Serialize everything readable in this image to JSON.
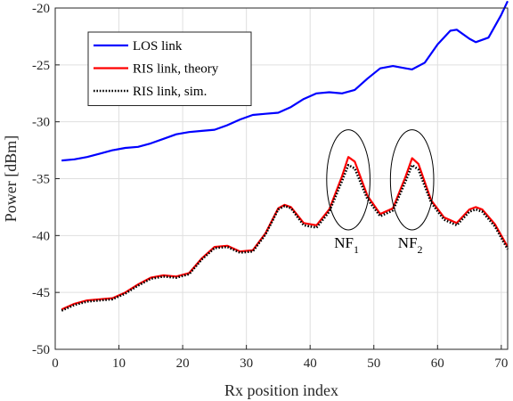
{
  "chart_data": {
    "type": "line",
    "xlabel": "Rx position index",
    "ylabel": "Power [dBm]",
    "xlim": [
      0,
      71
    ],
    "ylim": [
      -50,
      -20
    ],
    "xticks": [
      0,
      10,
      20,
      30,
      40,
      50,
      60,
      70
    ],
    "yticks": [
      -50,
      -45,
      -40,
      -35,
      -30,
      -25,
      -20
    ],
    "grid": true,
    "legend_position": "top-left",
    "series": [
      {
        "name": "LOS link",
        "color": "#0000ff",
        "style": "solid",
        "x": [
          1,
          3,
          5,
          7,
          9,
          11,
          13,
          15,
          17,
          19,
          21,
          23,
          25,
          27,
          29,
          31,
          33,
          35,
          37,
          39,
          41,
          43,
          45,
          47,
          49,
          51,
          53,
          55,
          56,
          58,
          60,
          62,
          63,
          65,
          66,
          68,
          70,
          71
        ],
        "values": [
          -33.4,
          -33.3,
          -33.1,
          -32.8,
          -32.5,
          -32.3,
          -32.2,
          -31.9,
          -31.5,
          -31.1,
          -30.9,
          -30.8,
          -30.7,
          -30.3,
          -29.8,
          -29.4,
          -29.3,
          -29.2,
          -28.7,
          -28.0,
          -27.5,
          -27.4,
          -27.5,
          -27.2,
          -26.2,
          -25.3,
          -25.1,
          -25.3,
          -25.4,
          -24.8,
          -23.2,
          -22.0,
          -21.9,
          -22.7,
          -23.0,
          -22.6,
          -20.6,
          -19.4
        ]
      },
      {
        "name": "RIS link, theory",
        "color": "#ff0000",
        "style": "solid",
        "x": [
          1,
          3,
          5,
          7,
          9,
          11,
          13,
          15,
          17,
          19,
          21,
          23,
          25,
          27,
          29,
          31,
          33,
          35,
          36,
          37,
          39,
          41,
          43,
          45,
          46,
          47,
          49,
          51,
          53,
          55,
          56,
          57,
          59,
          61,
          63,
          65,
          66,
          67,
          69,
          71
        ],
        "values": [
          -46.5,
          -46.0,
          -45.7,
          -45.6,
          -45.5,
          -45.0,
          -44.3,
          -43.7,
          -43.5,
          -43.6,
          -43.3,
          -42.0,
          -41.0,
          -40.9,
          -41.4,
          -41.3,
          -39.8,
          -37.6,
          -37.3,
          -37.5,
          -38.9,
          -39.1,
          -37.7,
          -34.8,
          -33.1,
          -33.5,
          -36.5,
          -38.1,
          -37.6,
          -34.8,
          -33.2,
          -33.7,
          -36.9,
          -38.4,
          -38.9,
          -37.7,
          -37.5,
          -37.7,
          -39.0,
          -41.0
        ]
      },
      {
        "name": "RIS link, sim.",
        "color": "#000000",
        "style": "dotted",
        "x": [
          1,
          3,
          5,
          7,
          9,
          11,
          13,
          15,
          17,
          19,
          21,
          23,
          25,
          27,
          29,
          31,
          33,
          35,
          36,
          37,
          39,
          41,
          43,
          45,
          46,
          47,
          49,
          51,
          53,
          55,
          56,
          57,
          59,
          61,
          63,
          65,
          66,
          67,
          69,
          71
        ],
        "values": [
          -46.6,
          -46.1,
          -45.8,
          -45.7,
          -45.6,
          -45.1,
          -44.4,
          -43.8,
          -43.6,
          -43.7,
          -43.4,
          -42.1,
          -41.1,
          -41.0,
          -41.5,
          -41.4,
          -39.9,
          -37.7,
          -37.4,
          -37.6,
          -39.1,
          -39.3,
          -37.9,
          -35.2,
          -33.8,
          -34.1,
          -36.8,
          -38.3,
          -37.8,
          -35.2,
          -33.8,
          -34.2,
          -37.1,
          -38.6,
          -39.1,
          -37.9,
          -37.7,
          -37.9,
          -39.2,
          -41.2
        ]
      }
    ],
    "annotations": [
      {
        "base": "NF",
        "sub": "1",
        "cx": 46,
        "cy": -35.1,
        "rx": 3.4,
        "ry": 4.4
      },
      {
        "base": "NF",
        "sub": "2",
        "cx": 56,
        "cy": -35.1,
        "rx": 3.4,
        "ry": 4.4
      }
    ]
  }
}
